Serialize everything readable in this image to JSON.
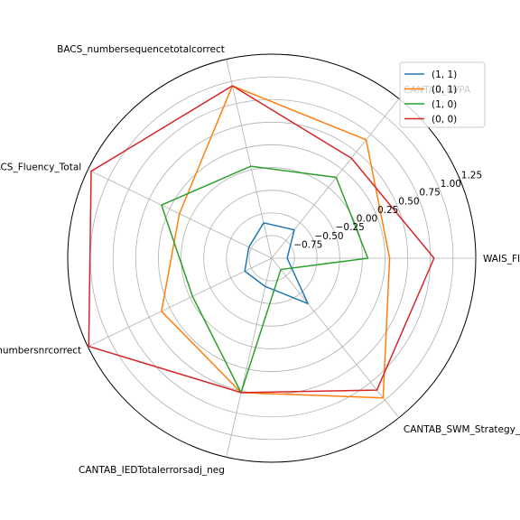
{
  "chart_data": {
    "type": "radar",
    "title": "",
    "axes": [
      "WAIS_FIQ",
      "CANTAB_RVPA",
      "BACS_numbersequencetotalcorrect",
      "BACS_Fluency_Total",
      "BACS_Symbolnumbersnrcorrect",
      "CANTAB_IEDTotalerrorsadj_neg",
      "CANTAB_SWM_Strategy_neg"
    ],
    "rlim": [
      -1.0,
      1.25
    ],
    "r_ticks": [
      -0.75,
      -0.5,
      -0.25,
      0.0,
      0.25,
      0.5,
      0.75,
      1.0,
      1.25
    ],
    "r_tick_labels": [
      "−0.75",
      "−0.50",
      "−0.25",
      "0.00",
      "0.25",
      "0.50",
      "0.75",
      "1.00",
      "1.25"
    ],
    "grid": true,
    "legend_position": "top-right",
    "series": [
      {
        "name": "(1, 1)",
        "color": "#1f77b4",
        "values": [
          -0.83,
          -0.6,
          -0.6,
          -0.72,
          -0.67,
          -0.68,
          -0.36
        ]
      },
      {
        "name": "(0, 1)",
        "color": "#ff7f0e",
        "values": [
          0.3,
          0.67,
          0.95,
          0.13,
          0.35,
          0.52,
          0.97
        ]
      },
      {
        "name": "(1, 0)",
        "color": "#2ca02c",
        "values": [
          0.06,
          0.14,
          0.04,
          0.35,
          -0.03,
          0.52,
          -0.84
        ]
      },
      {
        "name": "(0, 0)",
        "color": "#d62728",
        "values": [
          0.79,
          0.41,
          0.95,
          1.21,
          1.24,
          0.52,
          0.86
        ]
      }
    ]
  }
}
